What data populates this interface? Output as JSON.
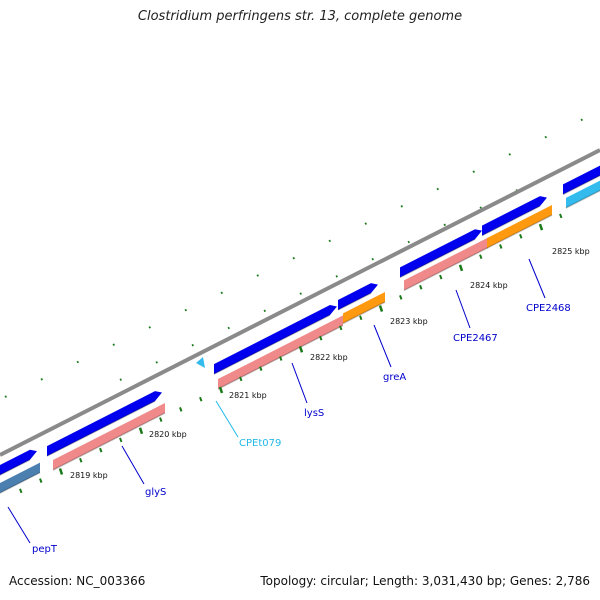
{
  "title": "Clostridium perfringens str. 13, complete genome",
  "accession": "Accession: NC_003366",
  "stats": "Topology: circular; Length: 3,031,430 bp; Genes: 2,786",
  "colors": {
    "backbone": "#8a8a8a",
    "ticks": "#1a7a1a",
    "forward_gene": "#0000ee",
    "cds": "#f08a8a",
    "cds_dark": "#a85050",
    "steelblue_cds": "#4a7fb0",
    "orange_cds": "#ff9910",
    "trna": "#33bbee",
    "label_blue": "#0000cc",
    "label_cyan": "#22b8e8"
  },
  "tick_labels": [
    "2819 kbp",
    "2820 kbp",
    "2821 kbp",
    "2822 kbp",
    "2823 kbp",
    "2824 kbp",
    "2825 kbp"
  ],
  "gene_labels": [
    {
      "name": "pepT",
      "color": "label_blue"
    },
    {
      "name": "glyS",
      "color": "label_blue"
    },
    {
      "name": "CPEt079",
      "color": "label_cyan"
    },
    {
      "name": "lysS",
      "color": "label_blue"
    },
    {
      "name": "greA",
      "color": "label_blue"
    },
    {
      "name": "CPE2467",
      "color": "label_blue"
    },
    {
      "name": "CPE2468",
      "color": "label_blue"
    }
  ]
}
